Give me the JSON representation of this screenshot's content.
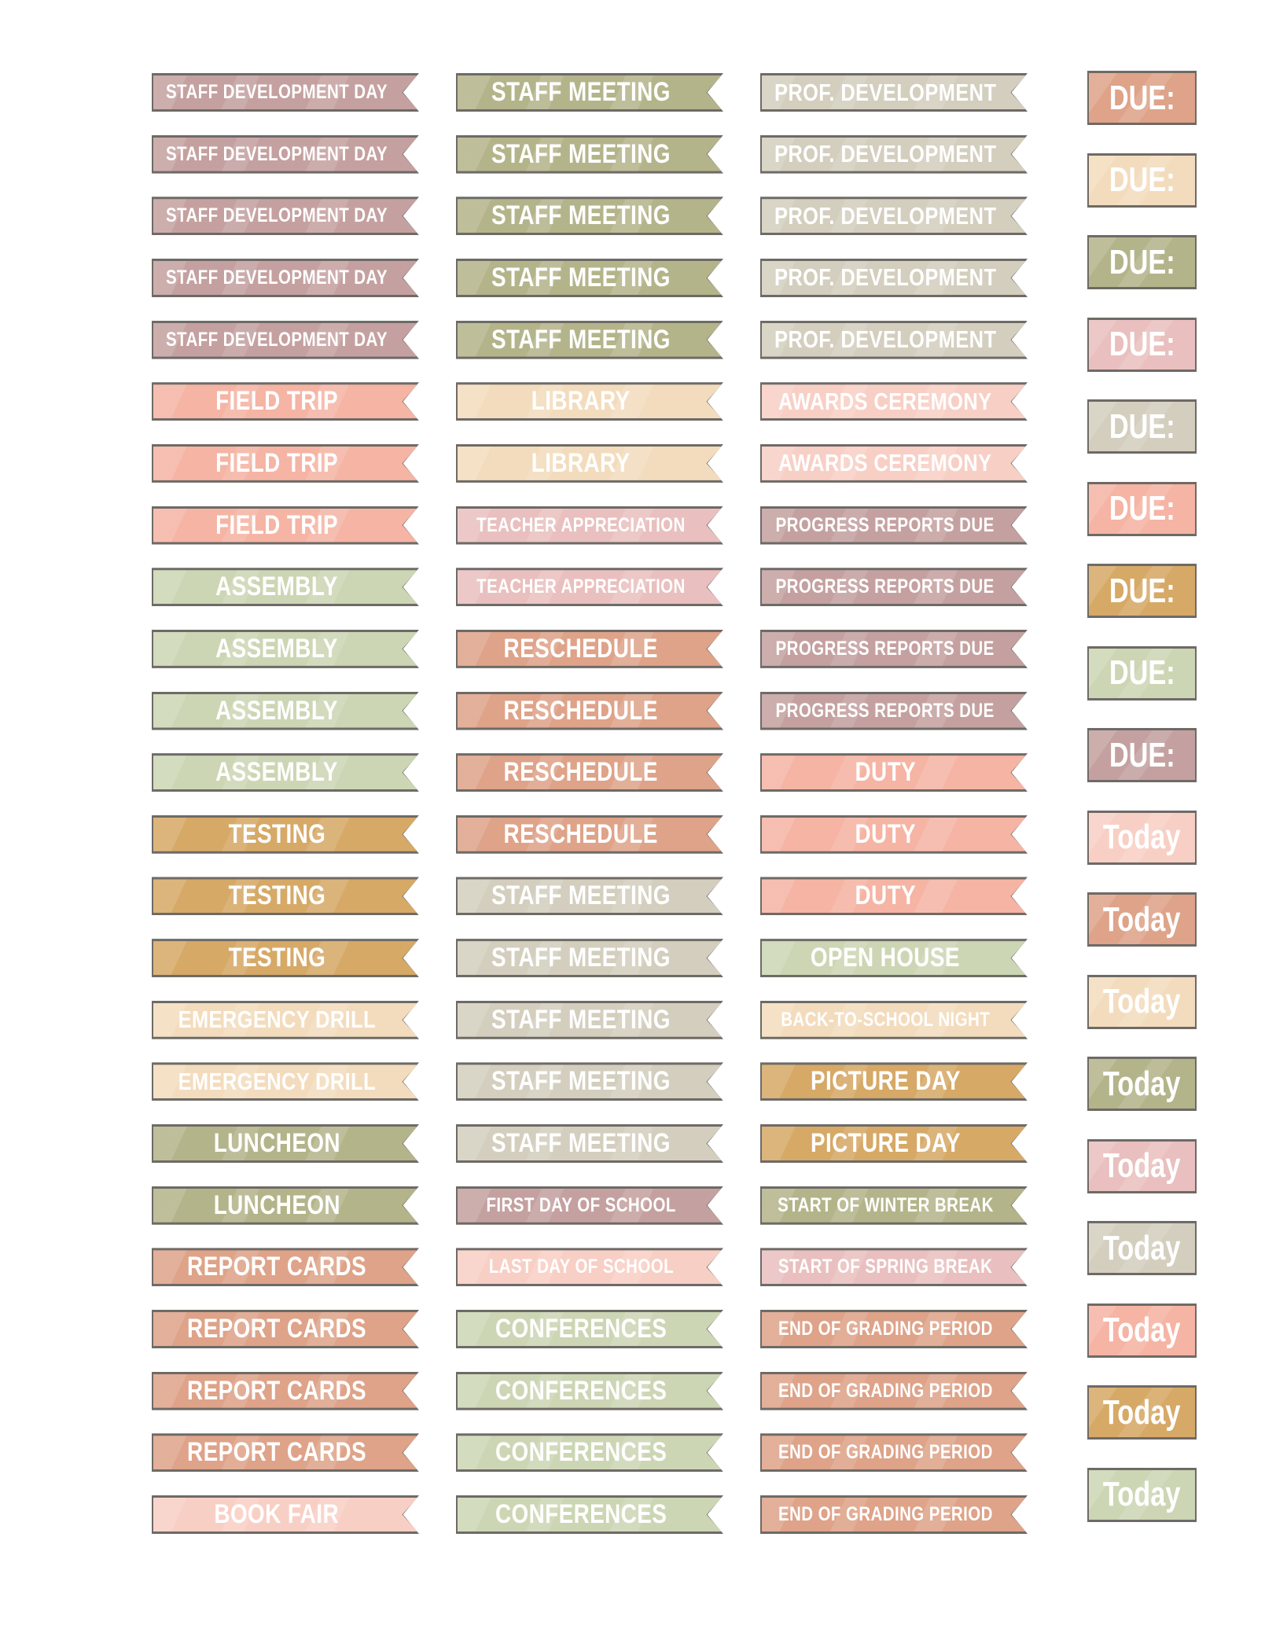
{
  "colors": {
    "mauve": "#c4a1a0",
    "olive": "#b4b48b",
    "greige": "#d3cebe",
    "peach": "#f5b4a4",
    "cream": "#f3dcbd",
    "sage": "#ccd6b4",
    "mustard": "#d6a967",
    "terracotta": "#dea389",
    "pink": "#e9c0bf",
    "lightpink": "#f8cfc5"
  },
  "columns": [
    [
      {
        "label": "STAFF DEVELOPMENT DAY",
        "color": "mauve"
      },
      {
        "label": "STAFF DEVELOPMENT DAY",
        "color": "mauve"
      },
      {
        "label": "STAFF DEVELOPMENT DAY",
        "color": "mauve"
      },
      {
        "label": "STAFF DEVELOPMENT DAY",
        "color": "mauve"
      },
      {
        "label": "STAFF DEVELOPMENT DAY",
        "color": "mauve"
      },
      {
        "label": "FIELD TRIP",
        "color": "peach"
      },
      {
        "label": "FIELD TRIP",
        "color": "peach"
      },
      {
        "label": "FIELD TRIP",
        "color": "peach"
      },
      {
        "label": "ASSEMBLY",
        "color": "sage"
      },
      {
        "label": "ASSEMBLY",
        "color": "sage"
      },
      {
        "label": "ASSEMBLY",
        "color": "sage"
      },
      {
        "label": "ASSEMBLY",
        "color": "sage"
      },
      {
        "label": "TESTING",
        "color": "mustard"
      },
      {
        "label": "TESTING",
        "color": "mustard"
      },
      {
        "label": "TESTING",
        "color": "mustard"
      },
      {
        "label": "EMERGENCY DRILL",
        "color": "cream"
      },
      {
        "label": "EMERGENCY DRILL",
        "color": "cream"
      },
      {
        "label": "LUNCHEON",
        "color": "olive"
      },
      {
        "label": "LUNCHEON",
        "color": "olive"
      },
      {
        "label": "REPORT CARDS",
        "color": "terracotta"
      },
      {
        "label": "REPORT CARDS",
        "color": "terracotta"
      },
      {
        "label": "REPORT CARDS",
        "color": "terracotta"
      },
      {
        "label": "REPORT CARDS",
        "color": "terracotta"
      },
      {
        "label": "BOOK FAIR",
        "color": "lightpink"
      }
    ],
    [
      {
        "label": "STAFF MEETING",
        "color": "olive"
      },
      {
        "label": "STAFF MEETING",
        "color": "olive"
      },
      {
        "label": "STAFF MEETING",
        "color": "olive"
      },
      {
        "label": "STAFF MEETING",
        "color": "olive"
      },
      {
        "label": "STAFF MEETING",
        "color": "olive"
      },
      {
        "label": "LIBRARY",
        "color": "cream"
      },
      {
        "label": "LIBRARY",
        "color": "cream"
      },
      {
        "label": "TEACHER APPRECIATION",
        "color": "pink"
      },
      {
        "label": "TEACHER APPRECIATION",
        "color": "pink"
      },
      {
        "label": "RESCHEDULE",
        "color": "terracotta"
      },
      {
        "label": "RESCHEDULE",
        "color": "terracotta"
      },
      {
        "label": "RESCHEDULE",
        "color": "terracotta"
      },
      {
        "label": "RESCHEDULE",
        "color": "terracotta"
      },
      {
        "label": "STAFF MEETING",
        "color": "greige"
      },
      {
        "label": "STAFF MEETING",
        "color": "greige"
      },
      {
        "label": "STAFF MEETING",
        "color": "greige"
      },
      {
        "label": "STAFF MEETING",
        "color": "greige"
      },
      {
        "label": "STAFF MEETING",
        "color": "greige"
      },
      {
        "label": "FIRST DAY OF SCHOOL",
        "color": "mauve"
      },
      {
        "label": "LAST DAY OF SCHOOL",
        "color": "lightpink"
      },
      {
        "label": "CONFERENCES",
        "color": "sage"
      },
      {
        "label": "CONFERENCES",
        "color": "sage"
      },
      {
        "label": "CONFERENCES",
        "color": "sage"
      },
      {
        "label": "CONFERENCES",
        "color": "sage"
      }
    ],
    [
      {
        "label": "PROF. DEVELOPMENT",
        "color": "greige"
      },
      {
        "label": "PROF. DEVELOPMENT",
        "color": "greige"
      },
      {
        "label": "PROF. DEVELOPMENT",
        "color": "greige"
      },
      {
        "label": "PROF. DEVELOPMENT",
        "color": "greige"
      },
      {
        "label": "PROF. DEVELOPMENT",
        "color": "greige"
      },
      {
        "label": "AWARDS CEREMONY",
        "color": "lightpink"
      },
      {
        "label": "AWARDS CEREMONY",
        "color": "lightpink"
      },
      {
        "label": "PROGRESS REPORTS DUE",
        "color": "mauve"
      },
      {
        "label": "PROGRESS REPORTS DUE",
        "color": "mauve"
      },
      {
        "label": "PROGRESS REPORTS DUE",
        "color": "mauve"
      },
      {
        "label": "PROGRESS REPORTS DUE",
        "color": "mauve"
      },
      {
        "label": "DUTY",
        "color": "peach"
      },
      {
        "label": "DUTY",
        "color": "peach"
      },
      {
        "label": "DUTY",
        "color": "peach"
      },
      {
        "label": "OPEN HOUSE",
        "color": "sage"
      },
      {
        "label": "BACK-TO-SCHOOL NIGHT",
        "color": "cream"
      },
      {
        "label": "PICTURE DAY",
        "color": "mustard"
      },
      {
        "label": "PICTURE DAY",
        "color": "mustard"
      },
      {
        "label": "START OF WINTER BREAK",
        "color": "olive"
      },
      {
        "label": "START OF SPRING BREAK",
        "color": "pink"
      },
      {
        "label": "END OF GRADING PERIOD",
        "color": "terracotta"
      },
      {
        "label": "END OF GRADING PERIOD",
        "color": "terracotta"
      },
      {
        "label": "END OF GRADING PERIOD",
        "color": "terracotta"
      },
      {
        "label": "END OF GRADING PERIOD",
        "color": "terracotta"
      }
    ]
  ],
  "tiles": [
    {
      "label": "DUE:",
      "color": "terracotta"
    },
    {
      "label": "DUE:",
      "color": "cream"
    },
    {
      "label": "DUE:",
      "color": "olive"
    },
    {
      "label": "DUE:",
      "color": "pink"
    },
    {
      "label": "DUE:",
      "color": "greige"
    },
    {
      "label": "DUE:",
      "color": "peach"
    },
    {
      "label": "DUE:",
      "color": "mustard"
    },
    {
      "label": "DUE:",
      "color": "sage"
    },
    {
      "label": "DUE:",
      "color": "mauve"
    },
    {
      "label": "Today",
      "color": "lightpink"
    },
    {
      "label": "Today",
      "color": "terracotta"
    },
    {
      "label": "Today",
      "color": "cream"
    },
    {
      "label": "Today",
      "color": "olive"
    },
    {
      "label": "Today",
      "color": "pink"
    },
    {
      "label": "Today",
      "color": "greige"
    },
    {
      "label": "Today",
      "color": "peach"
    },
    {
      "label": "Today",
      "color": "mustard"
    },
    {
      "label": "Today",
      "color": "sage"
    }
  ]
}
